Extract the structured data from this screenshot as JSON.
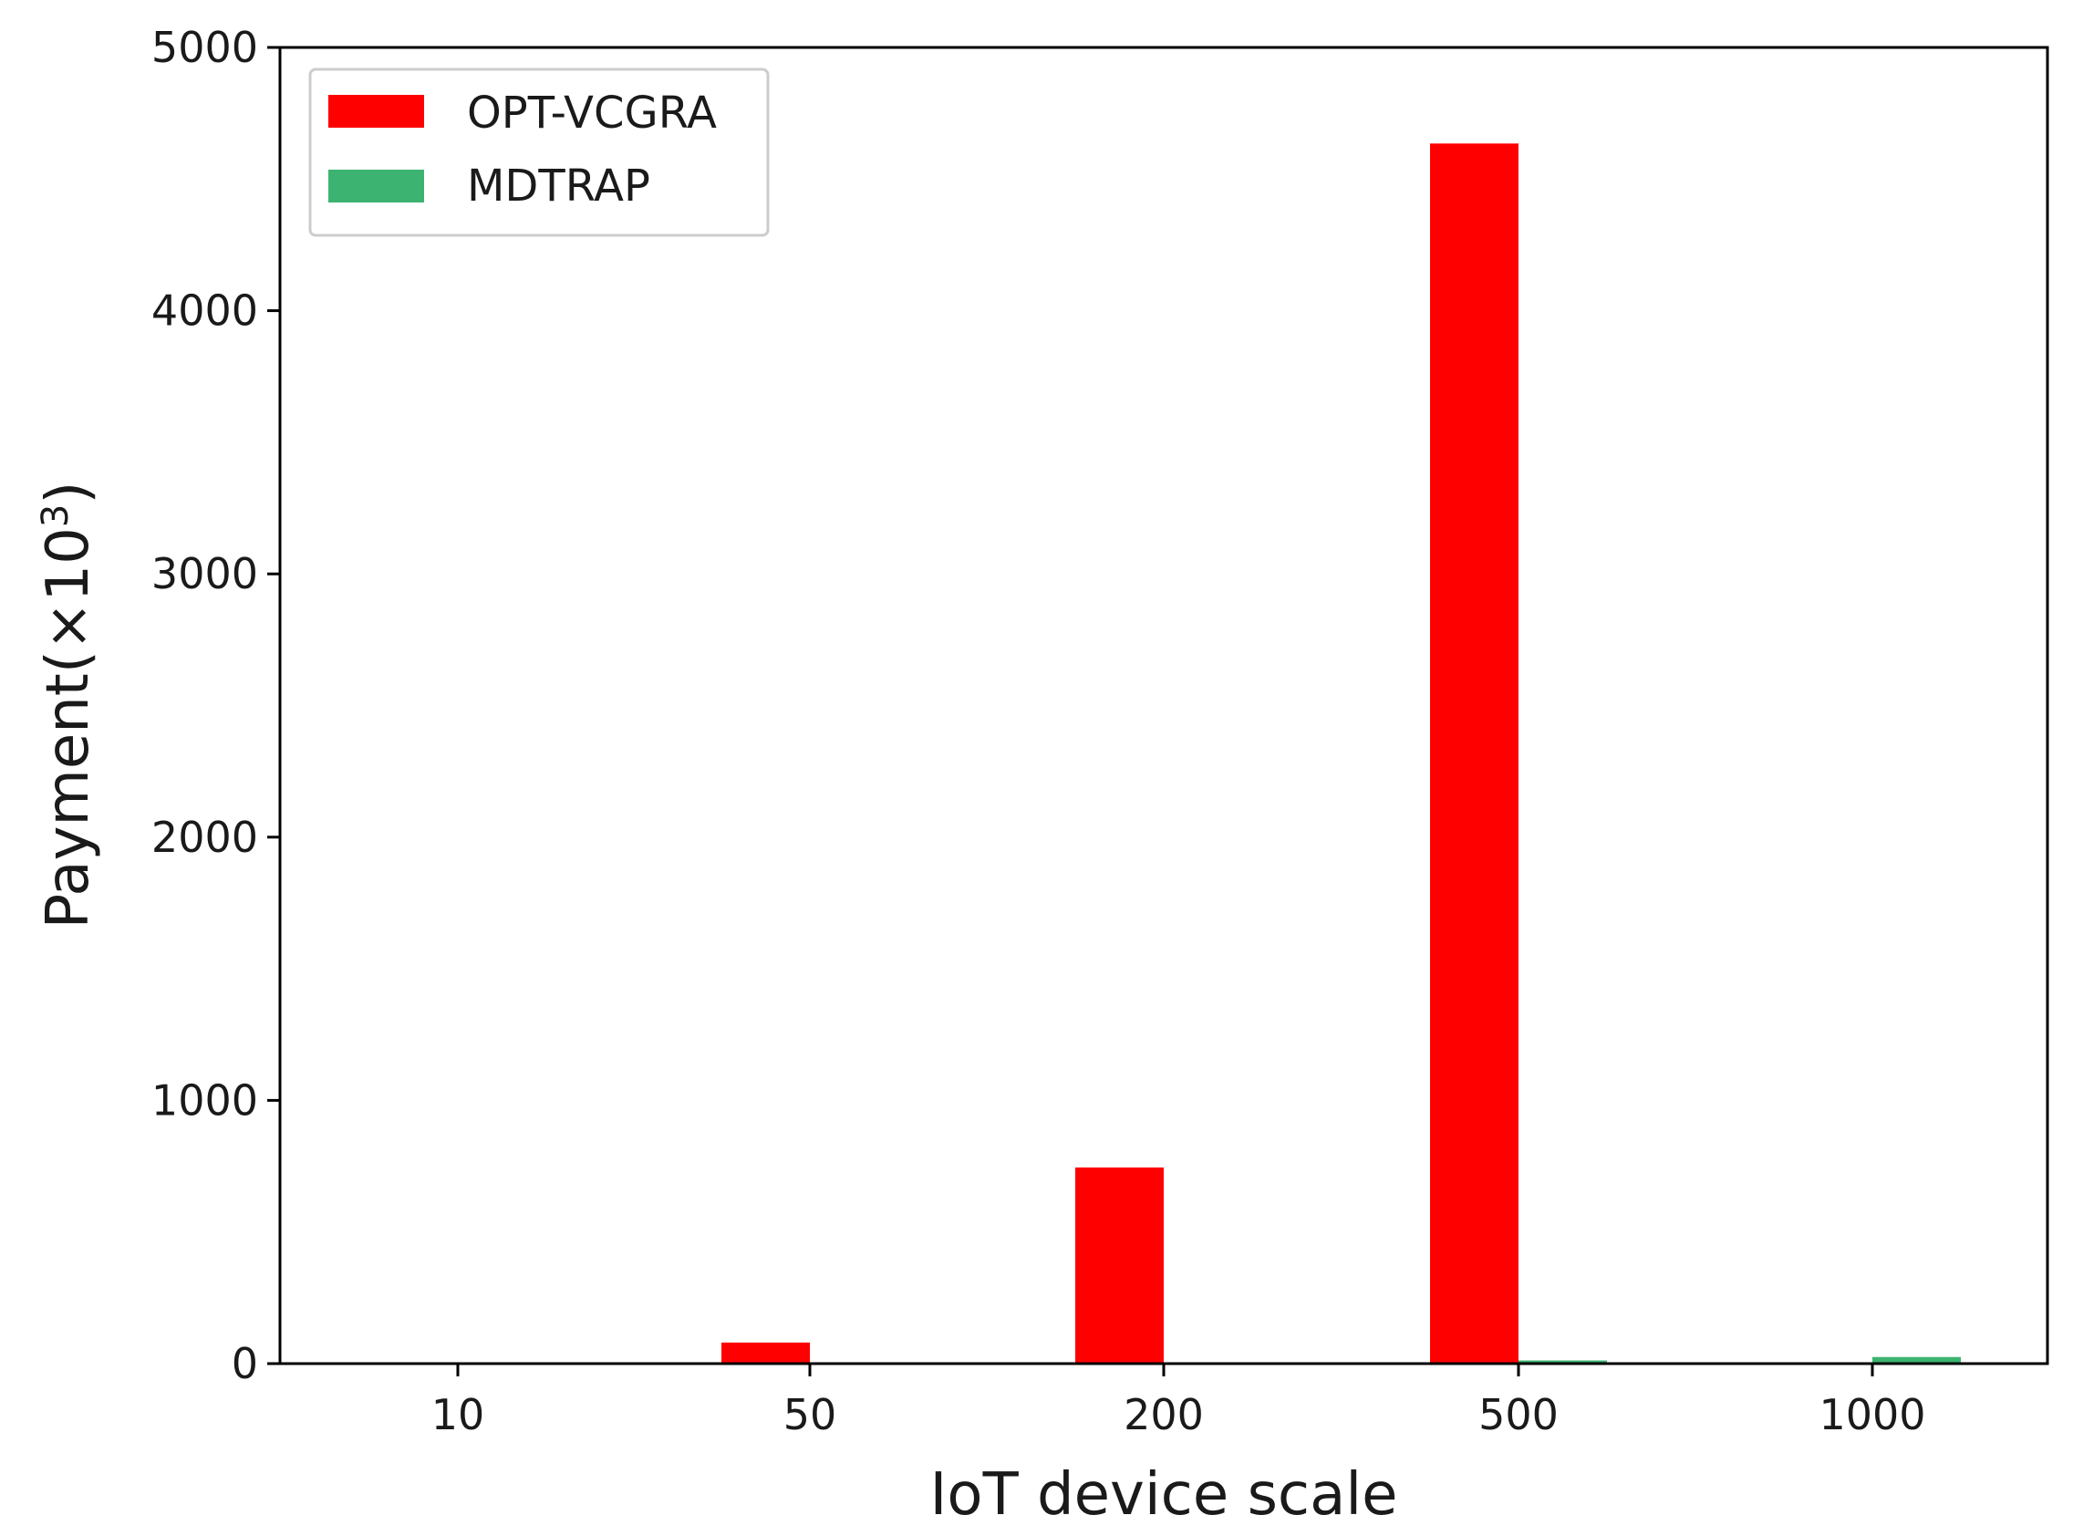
{
  "chart_data": {
    "type": "bar",
    "title": "",
    "xlabel": "IoT device scale",
    "ylabel_main": "Payment(×10",
    "ylabel_sup": "3",
    "ylabel_end": ")",
    "categories": [
      "10",
      "50",
      "200",
      "500",
      "1000"
    ],
    "series": [
      {
        "name": "OPT-VCGRA",
        "color": "#ff0000",
        "values": [
          0,
          80,
          745,
          4635,
          0
        ]
      },
      {
        "name": "MDTRAP",
        "color": "#3cb371",
        "values": [
          0,
          0,
          0,
          12,
          25
        ]
      }
    ],
    "ylim": [
      0,
      5000
    ],
    "yticks": [
      "0",
      "1000",
      "2000",
      "3000",
      "4000",
      "5000"
    ],
    "ytick_values": [
      0,
      1000,
      2000,
      3000,
      4000,
      5000
    ],
    "grid": false,
    "legend_position": "top-left"
  }
}
